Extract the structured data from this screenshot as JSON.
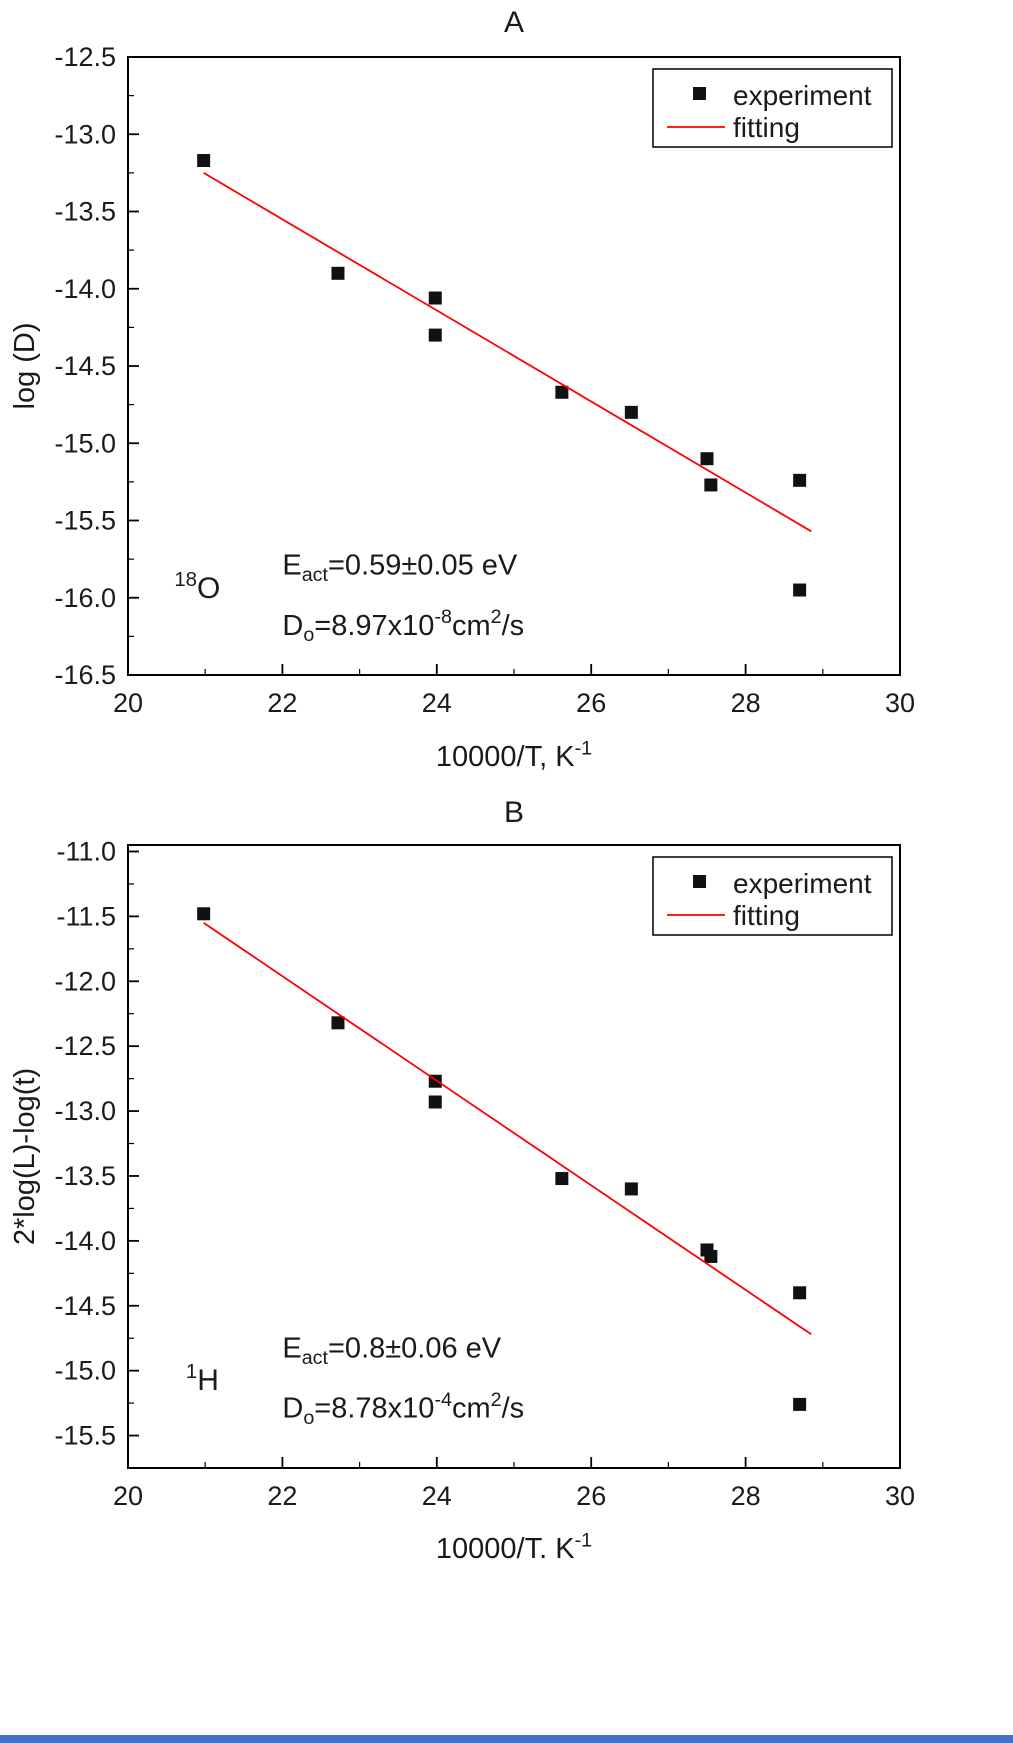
{
  "figure": {
    "background": "#ffffff",
    "text_color": "#1a1a1a",
    "frame_color": "#000000",
    "footer_strip_color": "#4472c4"
  },
  "chart_data": [
    {
      "type": "scatter",
      "title": "A",
      "xlabel_segments": [
        {
          "t": "10000/T, K",
          "s": "n"
        },
        {
          "t": "-1",
          "s": "sup"
        }
      ],
      "ylabel_segments": [
        {
          "t": "log (D)",
          "s": "n"
        }
      ],
      "xlim": [
        20,
        30
      ],
      "ylim": [
        -16.5,
        -12.5
      ],
      "xtick_vals": [
        20,
        22,
        24,
        26,
        28,
        30
      ],
      "xtick_labels": [
        "20",
        "22",
        "24",
        "26",
        "28",
        "30"
      ],
      "ytick_vals": [
        -16.5,
        -16.0,
        -15.5,
        -15.0,
        -14.5,
        -14.0,
        -13.5,
        -13.0,
        -12.5
      ],
      "ytick_labels": [
        "-16.5",
        "-16.0",
        "-15.5",
        "-15.0",
        "-14.5",
        "-14.0",
        "-13.5",
        "-13.0",
        "-12.5"
      ],
      "x_minor_step": 1,
      "y_minor_step": 0.25,
      "grid": false,
      "legend_position": "top-right",
      "series": [
        {
          "name": "experiment",
          "kind": "scatter",
          "marker": "square",
          "color": "#111111",
          "x": [
            20.98,
            22.72,
            23.98,
            23.98,
            25.62,
            26.52,
            27.5,
            27.55,
            28.7,
            28.7
          ],
          "y": [
            -13.17,
            -13.9,
            -14.06,
            -14.3,
            -14.67,
            -14.8,
            -15.1,
            -15.27,
            -15.24,
            -15.95
          ]
        },
        {
          "name": "fitting",
          "kind": "line",
          "color": "#ff0000",
          "x": [
            20.98,
            28.85
          ],
          "y": [
            -13.25,
            -15.57
          ]
        }
      ],
      "annotations": [
        {
          "segments": [
            {
              "t": "18",
              "s": "sup"
            },
            {
              "t": "O",
              "s": "n"
            }
          ],
          "x": 20.6,
          "y": -16.0,
          "size": 30
        },
        {
          "segments": [
            {
              "t": "E",
              "s": "n"
            },
            {
              "t": "act",
              "s": "sub"
            },
            {
              "t": "=0.59±0.05 eV",
              "s": "n"
            }
          ],
          "x": 22.0,
          "y": -15.85,
          "size": 29
        },
        {
          "segments": [
            {
              "t": "D",
              "s": "n"
            },
            {
              "t": "o",
              "s": "sub"
            },
            {
              "t": "=8.97x10",
              "s": "n"
            },
            {
              "t": "-8",
              "s": "sup"
            },
            {
              "t": "cm",
              "s": "n"
            },
            {
              "t": "2",
              "s": "sup"
            },
            {
              "t": "/s",
              "s": "n"
            }
          ],
          "x": 22.0,
          "y": -16.24,
          "size": 29
        }
      ]
    },
    {
      "type": "scatter",
      "title": "B",
      "xlabel_segments": [
        {
          "t": "10000/T. K",
          "s": "n"
        },
        {
          "t": "-1",
          "s": "sup"
        }
      ],
      "ylabel_segments": [
        {
          "t": "2*log(L)-log(t)",
          "s": "n"
        }
      ],
      "xlim": [
        20,
        30
      ],
      "ylim": [
        -15.75,
        -10.95
      ],
      "xtick_vals": [
        20,
        22,
        24,
        26,
        28,
        30
      ],
      "xtick_labels": [
        "20",
        "22",
        "24",
        "26",
        "28",
        "30"
      ],
      "ytick_vals": [
        -15.5,
        -15.0,
        -14.5,
        -14.0,
        -13.5,
        -13.0,
        -12.5,
        -12.0,
        -11.5,
        -11.0
      ],
      "ytick_labels": [
        "-15.5",
        "-15.0",
        "-14.5",
        "-14.0",
        "-13.5",
        "-13.0",
        "-12.5",
        "-12.0",
        "-11.5",
        "-11.0"
      ],
      "x_minor_step": 1,
      "y_minor_step": 0.25,
      "grid": false,
      "legend_position": "top-right",
      "series": [
        {
          "name": "experiment",
          "kind": "scatter",
          "marker": "square",
          "color": "#111111",
          "x": [
            20.98,
            22.72,
            23.98,
            23.98,
            25.62,
            26.52,
            27.5,
            27.55,
            28.7,
            28.7
          ],
          "y": [
            -11.48,
            -12.32,
            -12.77,
            -12.93,
            -13.52,
            -13.6,
            -14.07,
            -14.12,
            -14.4,
            -15.26
          ]
        },
        {
          "name": "fitting",
          "kind": "line",
          "color": "#ff0000",
          "x": [
            20.98,
            28.85
          ],
          "y": [
            -11.55,
            -14.72
          ]
        }
      ],
      "annotations": [
        {
          "segments": [
            {
              "t": "1",
              "s": "sup"
            },
            {
              "t": "H",
              "s": "n"
            }
          ],
          "x": 20.75,
          "y": -15.15,
          "size": 30
        },
        {
          "segments": [
            {
              "t": "E",
              "s": "n"
            },
            {
              "t": "act",
              "s": "sub"
            },
            {
              "t": "=0.8±0.06 eV",
              "s": "n"
            }
          ],
          "x": 22.0,
          "y": -14.9,
          "size": 29
        },
        {
          "segments": [
            {
              "t": "D",
              "s": "n"
            },
            {
              "t": "o",
              "s": "sub"
            },
            {
              "t": "=8.78x10",
              "s": "n"
            },
            {
              "t": "-4",
              "s": "sup"
            },
            {
              "t": "cm",
              "s": "n"
            },
            {
              "t": "2",
              "s": "sup"
            },
            {
              "t": "/s",
              "s": "n"
            }
          ],
          "x": 22.0,
          "y": -15.36,
          "size": 29
        }
      ]
    }
  ]
}
